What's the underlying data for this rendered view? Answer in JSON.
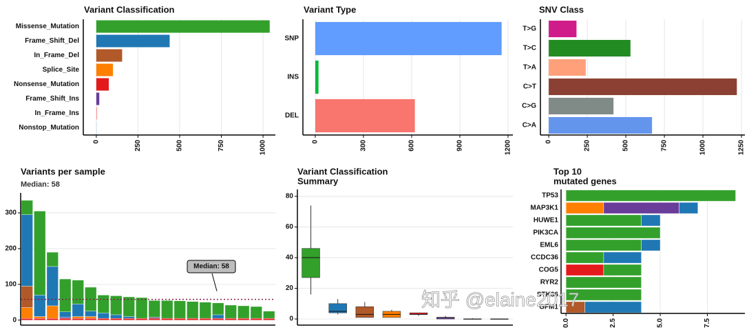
{
  "chart_data": [
    {
      "type": "hbar",
      "title": "Variant Classification",
      "categories": [
        "Missense_Mutation",
        "Frame_Shift_Del",
        "In_Frame_Del",
        "Splice_Site",
        "Nonsense_Mutation",
        "Frame_Shift_Ins",
        "In_Frame_Ins",
        "Nonstop_Mutation"
      ],
      "values": [
        1040,
        440,
        155,
        100,
        75,
        18,
        5,
        2
      ],
      "colors": [
        "#33a02c",
        "#1f78b4",
        "#b15928",
        "#ff7f00",
        "#e31a1c",
        "#6a3d9a",
        "#fb9a99",
        "#a6cee3"
      ],
      "xlim": [
        -78,
        1074
      ],
      "xticks": [
        0,
        250,
        500,
        750,
        1000
      ],
      "grid": true
    },
    {
      "type": "hbar",
      "title": "Variant Type",
      "categories": [
        "SNP",
        "INS",
        "DEL"
      ],
      "values": [
        1160,
        20,
        620
      ],
      "colors": [
        "#619cff",
        "#00ba38",
        "#f8766d"
      ],
      "xlim": [
        -77,
        1230
      ],
      "xticks": [
        0,
        300,
        600,
        900,
        1200
      ],
      "grid": true
    },
    {
      "type": "hbar",
      "title": "SNV Class",
      "categories": [
        "T>G",
        "T>C",
        "T>A",
        "C>T",
        "C>G",
        "C>A"
      ],
      "values": [
        180,
        530,
        240,
        1220,
        420,
        670
      ],
      "colors": [
        "#d01c8b",
        "#228b22",
        "#ffa07a",
        "#8b4033",
        "#808a87",
        "#6495ed"
      ],
      "xlim": [
        -54,
        1272
      ],
      "xticks": [
        0,
        250,
        500,
        750,
        1000,
        1250
      ],
      "grid": true
    },
    {
      "type": "stacked-bar",
      "title": "Variants per sample",
      "subtitle": "Median: 58",
      "annotation": "Median: 58",
      "median": 58,
      "median_color": "#8b1a4a",
      "series": [
        {
          "color": "#e31a1c",
          "values": [
            5,
            5,
            5,
            5,
            5,
            5,
            5,
            5,
            5,
            5,
            5,
            5,
            5,
            5,
            5,
            5,
            5,
            5,
            5,
            5
          ]
        },
        {
          "color": "#ff7f00",
          "values": [
            30,
            5,
            35,
            0,
            5,
            5,
            0,
            0,
            0,
            0,
            0,
            0,
            0,
            0,
            0,
            0,
            0,
            0,
            0,
            0
          ]
        },
        {
          "color": "#6a3d9a",
          "values": [
            0,
            0,
            0,
            3,
            0,
            0,
            0,
            0,
            0,
            0,
            3,
            0,
            0,
            0,
            0,
            0,
            0,
            0,
            0,
            0
          ]
        },
        {
          "color": "#b15928",
          "values": [
            60,
            0,
            0,
            0,
            0,
            0,
            0,
            0,
            0,
            0,
            0,
            0,
            0,
            0,
            0,
            0,
            0,
            0,
            0,
            0
          ]
        },
        {
          "color": "#1f78b4",
          "values": [
            200,
            60,
            110,
            15,
            35,
            15,
            15,
            10,
            5,
            0,
            0,
            0,
            0,
            0,
            0,
            10,
            0,
            0,
            0,
            0
          ]
        },
        {
          "color": "#33a02c",
          "values": [
            40,
            235,
            40,
            92,
            67,
            67,
            50,
            53,
            55,
            58,
            47,
            50,
            49,
            47,
            45,
            33,
            37,
            35,
            33,
            20
          ]
        }
      ],
      "ylim": [
        -14,
        356
      ],
      "yticks": [
        0,
        100,
        200,
        300
      ],
      "grid": true
    },
    {
      "type": "box",
      "title": [
        "Variant Classification",
        "Summary"
      ],
      "stats": [
        [
          16,
          27,
          40,
          46,
          74
        ],
        [
          3,
          4,
          5,
          10,
          13
        ],
        [
          1,
          1,
          3,
          8,
          11
        ],
        [
          1,
          1,
          3,
          5,
          6
        ],
        [
          2,
          3,
          3,
          4,
          4
        ],
        [
          0,
          0,
          1,
          1,
          2
        ],
        [
          0,
          0,
          0,
          0,
          0.5
        ],
        [
          0,
          0,
          0,
          0,
          0
        ]
      ],
      "colors": [
        "#33a02c",
        "#1f78b4",
        "#b15928",
        "#ff7f00",
        "#e31a1c",
        "#6a3d9a",
        "#fb9a99",
        "#a6cee3"
      ],
      "ylim": [
        -4,
        84.5
      ],
      "yticks": [
        0,
        20,
        40,
        60,
        80
      ],
      "grid": true
    },
    {
      "type": "stacked-hbar",
      "title": [
        "Top 10",
        "mutated genes"
      ],
      "categories": [
        "TP53",
        "MAP3K1",
        "HUWE1",
        "PIK3CA",
        "EML6",
        "CCDC36",
        "COG5",
        "RYR2",
        "STK36",
        "GFM1"
      ],
      "series": [
        {
          "color": "#e31a1c",
          "values": [
            0,
            0,
            0,
            0,
            0,
            0,
            2,
            0,
            0,
            0
          ]
        },
        {
          "color": "#ff7f00",
          "values": [
            0,
            2,
            0,
            0,
            0,
            0,
            0,
            0,
            0,
            0
          ]
        },
        {
          "color": "#b15928",
          "values": [
            0,
            0,
            0,
            0,
            0,
            0,
            0,
            0,
            0,
            1
          ]
        },
        {
          "color": "#6a3d9a",
          "values": [
            0,
            4,
            0,
            0,
            0,
            0,
            0,
            0,
            0,
            0
          ]
        },
        {
          "color": "#33a02c",
          "values": [
            9,
            0,
            4,
            5,
            4,
            2,
            2,
            4,
            4,
            0
          ]
        },
        {
          "color": "#1f78b4",
          "values": [
            0,
            1,
            1,
            0,
            1,
            2,
            0,
            0,
            0,
            3
          ]
        }
      ],
      "xlim": [
        -0.26,
        9.49
      ],
      "xticks": [
        {
          "value": 0,
          "label": "0.0"
        },
        2.5,
        {
          "value": 5,
          "label": "5.0"
        },
        7.5
      ],
      "grid": true
    }
  ],
  "watermark": "知乎 @elaine2017"
}
